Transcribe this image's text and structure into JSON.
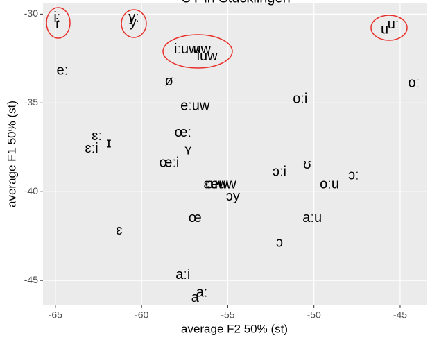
{
  "chart_data": {
    "type": "scatter",
    "title": "ÜY in Stücklingen",
    "xlabel": "average F2 50% (st)",
    "ylabel": "average F1 50% (st)",
    "labels": [
      "iː",
      "i",
      "yː",
      "y",
      "uː",
      "u",
      "iːuw",
      "uw",
      "iuw",
      "eː",
      "øː",
      "oː",
      "oːi",
      "eːuw",
      "œː",
      "ɛː",
      "ɪ",
      "ɛːi",
      "ʏ",
      "œːi",
      "ʊ",
      "ɔːi",
      "ɔː",
      "oːu",
      "ɛuw",
      "œuw",
      "ɔy",
      "œ",
      "aːu",
      "ɛ",
      "ɔ",
      "aːi",
      "aː",
      "a"
    ],
    "x": [
      -64.9,
      -64.9,
      -60.45,
      -60.5,
      -45.4,
      -45.9,
      -57.4,
      -56.5,
      -56.2,
      -64.6,
      -58.3,
      -44.2,
      -50.8,
      -56.9,
      -57.6,
      -62.6,
      -61.9,
      -62.9,
      -57.3,
      -58.4,
      -50.4,
      -52.0,
      -47.7,
      -49.1,
      -55.7,
      -55.4,
      -54.7,
      -56.9,
      -50.1,
      -61.3,
      -52.0,
      -57.6,
      -56.5,
      -56.9
    ],
    "values": [
      -30.2,
      -30.6,
      -30.2,
      -30.5,
      -30.6,
      -30.9,
      -32.0,
      -32.0,
      -32.4,
      -33.2,
      -33.8,
      -33.9,
      -34.8,
      -35.2,
      -36.7,
      -36.9,
      -37.3,
      -37.6,
      -37.7,
      -38.4,
      -38.5,
      -38.9,
      -39.1,
      -39.6,
      -39.6,
      -39.6,
      -40.3,
      -41.5,
      -41.5,
      -42.2,
      -42.9,
      -44.7,
      -45.7,
      -46.0
    ],
    "xlim": [
      -65.72,
      -43.47
    ],
    "ylim": [
      -46.4,
      -29.4
    ],
    "xticks": [
      -65,
      -60,
      -55,
      -50,
      -45
    ],
    "yticks": [
      -30,
      -35,
      -40,
      -45
    ],
    "grid": true
  }
}
